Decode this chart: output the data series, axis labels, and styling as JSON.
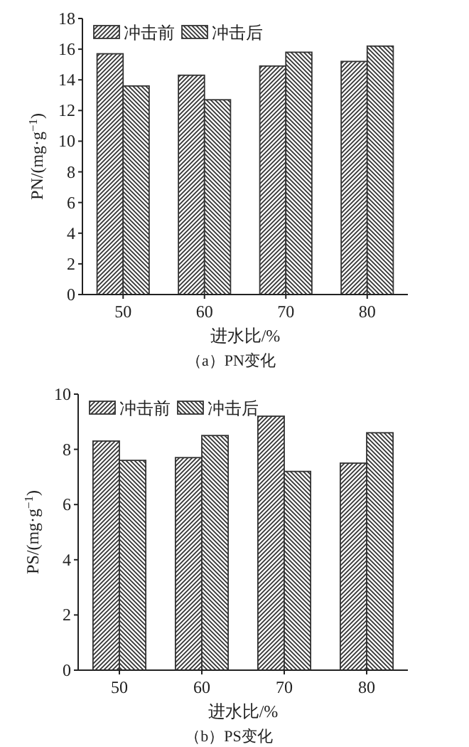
{
  "chart_data": [
    {
      "type": "bar",
      "categories": [
        "50",
        "60",
        "70",
        "80"
      ],
      "xlabel": "进水比/%",
      "ylabel": "PN/(mg·g$^{−1}$)",
      "ylim": [
        0,
        18
      ],
      "yticks": [
        0,
        2,
        4,
        6,
        8,
        10,
        12,
        14,
        16,
        18
      ],
      "legend": "top left",
      "annotations": [
        "（a）PN变化"
      ],
      "series": [
        {
          "name": "冲击前",
          "color": "#333333",
          "values": [
            15.7,
            14.3,
            14.9,
            15.2
          ]
        },
        {
          "name": "冲击后",
          "color": "#333333",
          "values": [
            13.6,
            12.7,
            15.8,
            16.2
          ]
        }
      ]
    },
    {
      "type": "bar",
      "categories": [
        "50",
        "60",
        "70",
        "80"
      ],
      "xlabel": "进水比/%",
      "ylabel": "PS/(mg·g$^{−1}$)",
      "ylim": [
        0,
        10
      ],
      "yticks": [
        0,
        2,
        4,
        6,
        8,
        10
      ],
      "legend": "top left",
      "annotations": [
        "（b）PS变化"
      ],
      "series": [
        {
          "name": "冲击前",
          "color": "#333333",
          "values": [
            8.3,
            7.7,
            9.2,
            7.5
          ]
        },
        {
          "name": "冲击后",
          "color": "#333333",
          "values": [
            7.6,
            8.5,
            7.2,
            8.6
          ]
        }
      ]
    }
  ]
}
